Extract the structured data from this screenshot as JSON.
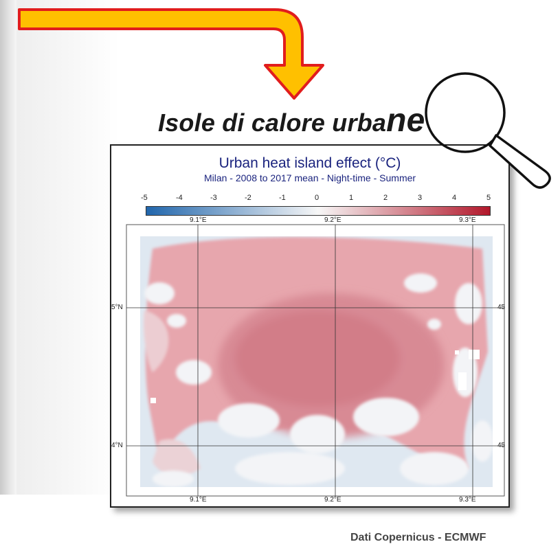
{
  "headline": {
    "main": "Isole di calore urba",
    "tail": "ne"
  },
  "map": {
    "title": "Urban heat island effect (°C)",
    "subtitle": "Milan - 2008 to 2017 mean - Night-time - Summer",
    "colorbar_ticks": [
      "-5",
      "-4",
      "-3",
      "-2",
      "-1",
      "0",
      "1",
      "2",
      "3",
      "4",
      "5"
    ],
    "lon_labels": [
      "9.1°E",
      "9.2°E",
      "9.3°E"
    ],
    "lat_labels_left": [
      "5°N",
      "4°N"
    ],
    "lat_labels_right": [
      "45",
      "45"
    ]
  },
  "colors": {
    "cold": "#2166ac",
    "neutral": "#f7f7f7",
    "warm": "#b2182b",
    "arrow_fill": "#ffc000",
    "arrow_stroke": "#e11d1d",
    "title_blue": "#1a237e"
  },
  "credit": "Dati Copernicus - ECMWF"
}
